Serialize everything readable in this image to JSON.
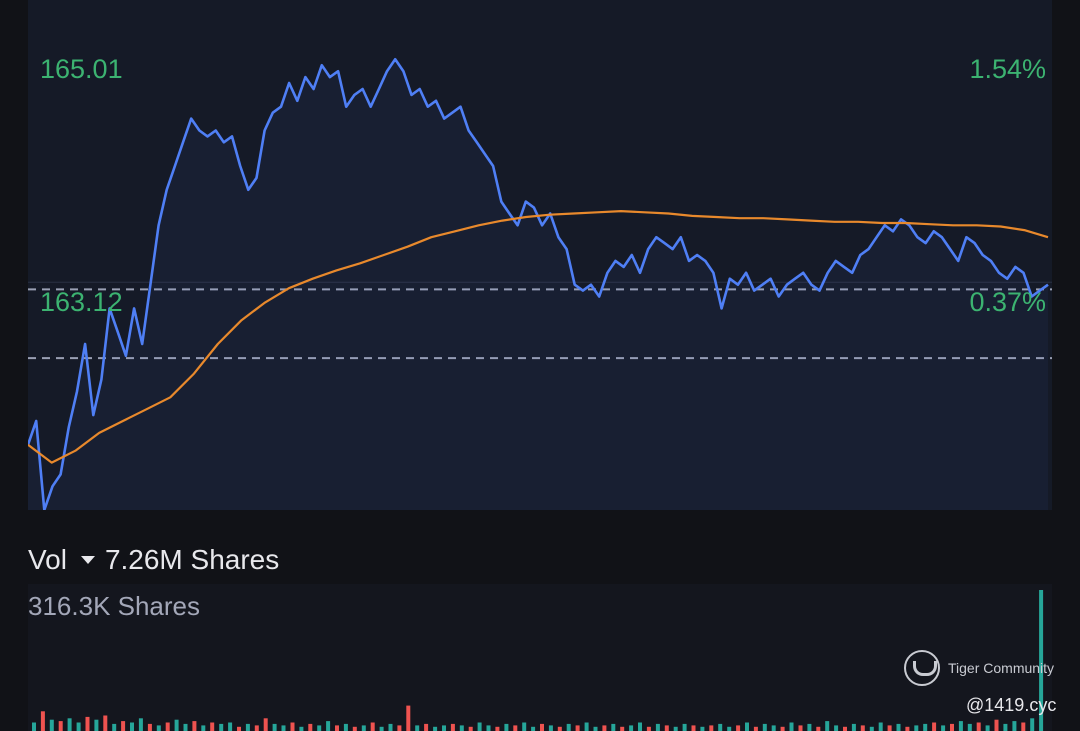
{
  "chart_data": {
    "type": "line",
    "price_axis": {
      "high_label": "165.01",
      "ref_label": "163.12",
      "pct_high_label": "1.54%",
      "pct_ref_label": "0.37%",
      "ylim": [
        161.2,
        165.5
      ],
      "guide_levels": [
        163.06,
        162.48
      ]
    },
    "series": [
      {
        "color": "#4f7ff5",
        "values": [
          161.75,
          161.95,
          161.2,
          161.4,
          161.5,
          161.9,
          162.2,
          162.6,
          162.0,
          162.3,
          162.9,
          162.7,
          162.5,
          162.9,
          162.6,
          163.1,
          163.6,
          163.9,
          164.1,
          164.3,
          164.5,
          164.4,
          164.35,
          164.4,
          164.3,
          164.35,
          164.1,
          163.9,
          164.0,
          164.4,
          164.55,
          164.6,
          164.8,
          164.65,
          164.85,
          164.75,
          164.95,
          164.85,
          164.9,
          164.6,
          164.7,
          164.75,
          164.6,
          164.75,
          164.9,
          165.0,
          164.9,
          164.7,
          164.75,
          164.6,
          164.65,
          164.5,
          164.55,
          164.6,
          164.4,
          164.3,
          164.2,
          164.1,
          163.8,
          163.7,
          163.6,
          163.8,
          163.75,
          163.6,
          163.7,
          163.5,
          163.4,
          163.1,
          163.05,
          163.1,
          163.0,
          163.2,
          163.3,
          163.25,
          163.35,
          163.2,
          163.4,
          163.5,
          163.45,
          163.4,
          163.5,
          163.3,
          163.35,
          163.3,
          163.2,
          162.9,
          163.15,
          163.1,
          163.2,
          163.05,
          163.1,
          163.15,
          163.0,
          163.1,
          163.15,
          163.2,
          163.1,
          163.05,
          163.2,
          163.3,
          163.25,
          163.2,
          163.35,
          163.4,
          163.5,
          163.6,
          163.55,
          163.65,
          163.6,
          163.5,
          163.45,
          163.55,
          163.5,
          163.4,
          163.3,
          163.5,
          163.45,
          163.35,
          163.3,
          163.2,
          163.15,
          163.25,
          163.2,
          163.0,
          163.05,
          163.1
        ]
      },
      {
        "color": "#e8892c",
        "values": [
          161.75,
          161.6,
          161.7,
          161.85,
          161.95,
          162.05,
          162.15,
          162.35,
          162.6,
          162.8,
          162.95,
          163.07,
          163.15,
          163.22,
          163.28,
          163.35,
          163.42,
          163.5,
          163.55,
          163.6,
          163.64,
          163.67,
          163.69,
          163.7,
          163.71,
          163.72,
          163.71,
          163.7,
          163.68,
          163.67,
          163.66,
          163.66,
          163.65,
          163.64,
          163.63,
          163.63,
          163.62,
          163.62,
          163.61,
          163.6,
          163.6,
          163.59,
          163.56,
          163.5
        ]
      }
    ]
  },
  "volume": {
    "header_label": "Vol",
    "total_label": "7.26M Shares",
    "max_label": "316.3K Shares",
    "colors": {
      "up": "#26a69a",
      "down": "#ef5350"
    },
    "bars": [
      0.06,
      0.14,
      0.08,
      0.07,
      0.09,
      0.06,
      0.1,
      0.08,
      0.11,
      0.05,
      0.07,
      0.06,
      0.09,
      0.05,
      0.04,
      0.06,
      0.08,
      0.05,
      0.07,
      0.04,
      0.06,
      0.05,
      0.06,
      0.03,
      0.05,
      0.04,
      0.09,
      0.05,
      0.04,
      0.06,
      0.03,
      0.05,
      0.04,
      0.07,
      0.04,
      0.05,
      0.03,
      0.04,
      0.06,
      0.03,
      0.05,
      0.04,
      0.18,
      0.04,
      0.05,
      0.03,
      0.04,
      0.05,
      0.04,
      0.03,
      0.06,
      0.04,
      0.03,
      0.05,
      0.04,
      0.06,
      0.03,
      0.05,
      0.04,
      0.03,
      0.05,
      0.04,
      0.06,
      0.03,
      0.04,
      0.05,
      0.03,
      0.04,
      0.06,
      0.03,
      0.05,
      0.04,
      0.03,
      0.05,
      0.04,
      0.03,
      0.04,
      0.05,
      0.03,
      0.04,
      0.06,
      0.03,
      0.05,
      0.04,
      0.03,
      0.06,
      0.04,
      0.05,
      0.03,
      0.07,
      0.04,
      0.03,
      0.05,
      0.04,
      0.03,
      0.06,
      0.04,
      0.05,
      0.03,
      0.04,
      0.05,
      0.06,
      0.04,
      0.05,
      0.07,
      0.05,
      0.06,
      0.04,
      0.08,
      0.05,
      0.07,
      0.06,
      0.09,
      1.0
    ],
    "bar_up": [
      1,
      0,
      1,
      0,
      1,
      1,
      0,
      1,
      0,
      1,
      0,
      1,
      1,
      0,
      1,
      0,
      1,
      1,
      0,
      1,
      0,
      1,
      1,
      0,
      1,
      0,
      0,
      1,
      1,
      0,
      1,
      0,
      1,
      1,
      0,
      1,
      0,
      1,
      0,
      1,
      1,
      0,
      0,
      1,
      0,
      1,
      1,
      0,
      1,
      0,
      1,
      1,
      0,
      1,
      0,
      1,
      1,
      0,
      1,
      0,
      1,
      0,
      1,
      1,
      0,
      1,
      0,
      1,
      1,
      0,
      1,
      0,
      1,
      1,
      0,
      1,
      0,
      1,
      1,
      0,
      1,
      0,
      1,
      1,
      0,
      1,
      0,
      1,
      0,
      1,
      1,
      0,
      1,
      0,
      1,
      1,
      0,
      1,
      0,
      1,
      1,
      0,
      1,
      0,
      1,
      1,
      0,
      1,
      0,
      1,
      1,
      0,
      1,
      1
    ]
  },
  "watermark": {
    "brand": "Tiger Community",
    "handle": "@1419.cyc"
  }
}
